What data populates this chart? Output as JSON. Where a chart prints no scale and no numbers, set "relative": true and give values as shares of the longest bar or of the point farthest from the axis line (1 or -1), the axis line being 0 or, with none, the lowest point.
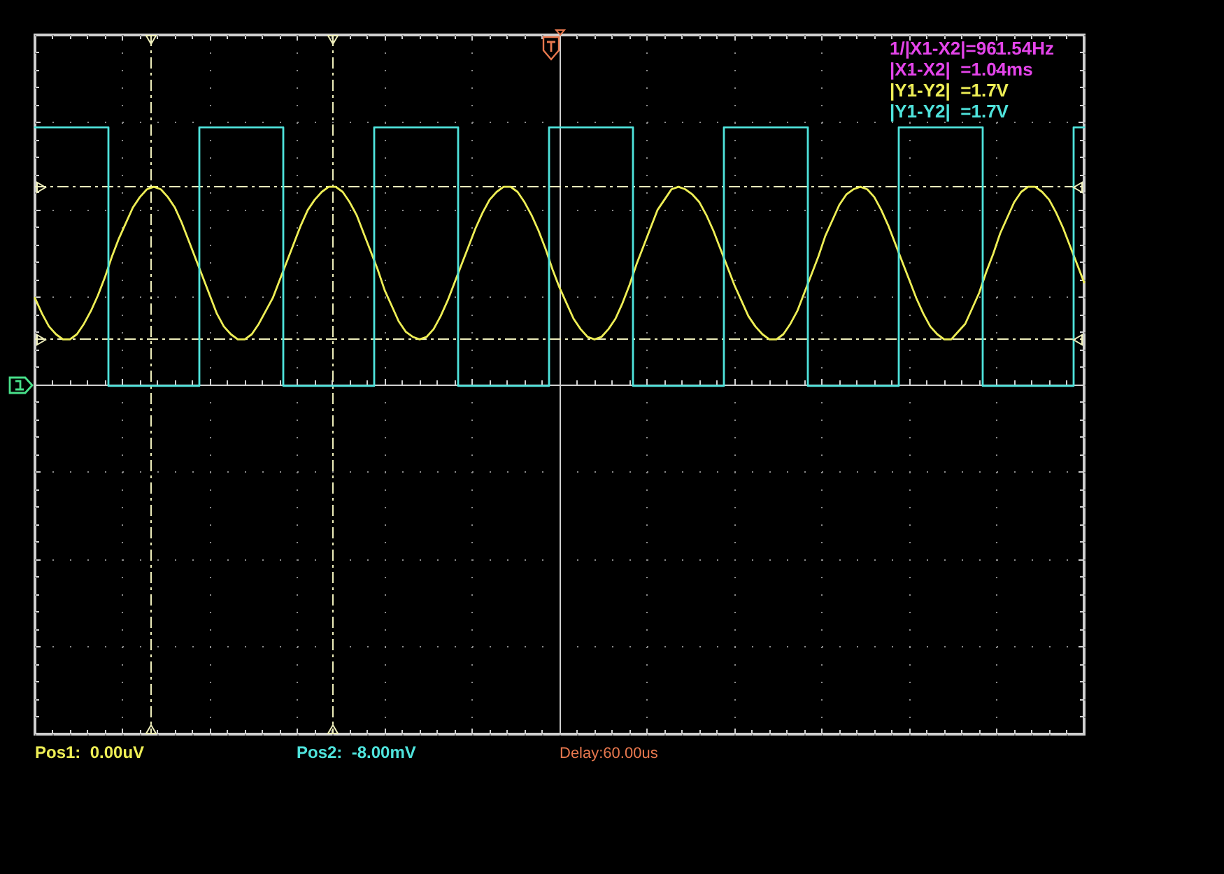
{
  "chart_data": {
    "type": "line",
    "relative": true,
    "grid": true,
    "line_style": "solid",
    "categories": [
      null,
      null,
      null,
      null,
      null,
      null,
      null,
      null,
      null,
      null,
      null,
      null,
      null,
      null,
      null,
      null,
      null,
      null,
      null,
      null,
      null,
      null,
      null,
      null,
      null,
      null,
      null,
      null,
      null,
      null,
      null,
      null,
      null,
      null,
      null,
      null,
      null,
      null,
      null,
      null,
      null,
      null,
      null,
      null,
      null,
      null,
      null,
      null,
      null,
      null,
      null,
      null,
      null,
      null,
      null,
      null,
      null,
      null,
      null,
      null,
      null,
      null,
      null,
      null,
      null,
      null,
      null,
      null,
      null,
      null,
      null,
      null,
      null,
      null,
      null,
      null,
      null,
      null,
      null,
      null,
      null,
      null,
      null,
      null,
      null,
      null,
      null,
      null,
      null,
      null,
      null,
      null,
      null,
      null,
      null,
      null,
      null,
      null,
      null,
      null,
      null,
      null,
      null,
      null,
      null,
      null,
      null,
      null,
      null,
      null,
      null,
      null,
      null,
      null,
      null,
      null,
      null,
      null,
      null,
      null,
      null,
      null,
      null,
      null,
      null,
      null,
      null,
      null,
      null,
      null,
      null,
      null,
      null,
      null,
      null,
      null,
      null,
      null,
      null,
      null,
      null,
      null,
      null,
      null,
      null,
      null,
      null,
      null,
      null,
      null,
      null
    ],
    "series": [
      {
        "color": "#eeee55",
        "values": [
          0.34,
          0.28,
          0.23,
          0.2,
          0.18,
          0.18,
          0.2,
          0.24,
          0.29,
          0.35,
          0.42,
          0.5,
          0.57,
          0.63,
          0.69,
          0.73,
          0.76,
          0.77,
          0.76,
          0.73,
          0.69,
          0.63,
          0.56,
          0.49,
          0.42,
          0.35,
          0.28,
          0.23,
          0.2,
          0.18,
          0.18,
          0.2,
          0.24,
          0.29,
          0.34,
          0.41,
          0.48,
          0.55,
          0.62,
          0.68,
          0.72,
          0.75,
          0.77,
          0.77,
          0.75,
          0.71,
          0.66,
          0.59,
          0.52,
          0.45,
          0.37,
          0.31,
          0.25,
          0.21,
          0.19,
          0.18,
          0.19,
          0.22,
          0.27,
          0.33,
          0.4,
          0.47,
          0.54,
          0.61,
          0.67,
          0.72,
          0.75,
          0.77,
          0.77,
          0.75,
          0.71,
          0.66,
          0.6,
          0.53,
          0.45,
          0.38,
          0.32,
          0.26,
          0.22,
          0.19,
          0.18,
          0.19,
          0.22,
          0.26,
          0.32,
          0.39,
          0.47,
          0.54,
          0.61,
          0.68,
          0.72,
          0.76,
          0.77,
          0.76,
          0.74,
          0.71,
          0.66,
          0.6,
          0.53,
          0.46,
          0.39,
          0.33,
          0.27,
          0.23,
          0.2,
          0.18,
          0.18,
          0.2,
          0.24,
          0.29,
          0.36,
          0.43,
          0.5,
          0.58,
          0.64,
          0.7,
          0.74,
          0.76,
          0.77,
          0.76,
          0.73,
          0.68,
          0.62,
          0.55,
          0.48,
          0.41,
          0.34,
          0.28,
          0.23,
          0.2,
          0.18,
          0.18,
          0.21,
          0.24,
          0.3,
          0.36,
          0.44,
          0.51,
          0.59,
          0.65,
          0.71,
          0.75,
          0.77,
          0.77,
          0.75,
          0.72,
          0.67,
          0.61,
          0.54,
          0.47,
          0.4
        ]
      },
      {
        "type": "step",
        "color": "#4fe3dc",
        "values": [
          1,
          1,
          1,
          1,
          1,
          1,
          1,
          1,
          1,
          1,
          1,
          0,
          0,
          0,
          0,
          0,
          0,
          0,
          0,
          0,
          0,
          0,
          0,
          0,
          1,
          1,
          1,
          1,
          1,
          1,
          1,
          1,
          1,
          1,
          1,
          1,
          0,
          0,
          0,
          0,
          0,
          0,
          0,
          0,
          0,
          0,
          0,
          0,
          0,
          1,
          1,
          1,
          1,
          1,
          1,
          1,
          1,
          1,
          1,
          1,
          1,
          0,
          0,
          0,
          0,
          0,
          0,
          0,
          0,
          0,
          0,
          0,
          0,
          0,
          1,
          1,
          1,
          1,
          1,
          1,
          1,
          1,
          1,
          1,
          1,
          1,
          0,
          0,
          0,
          0,
          0,
          0,
          0,
          0,
          0,
          0,
          0,
          0,
          0,
          1,
          1,
          1,
          1,
          1,
          1,
          1,
          1,
          1,
          1,
          1,
          1,
          0,
          0,
          0,
          0,
          0,
          0,
          0,
          0,
          0,
          0,
          0,
          0,
          0,
          1,
          1,
          1,
          1,
          1,
          1,
          1,
          1,
          1,
          1,
          1,
          1,
          0,
          0,
          0,
          0,
          0,
          0,
          0,
          0,
          0,
          0,
          0,
          0,
          0,
          1,
          1
        ]
      }
    ],
    "ref_lines": [
      {
        "axis": "y",
        "value": 0.77,
        "color": "#eeeebb",
        "line_style": "dashed"
      },
      {
        "axis": "y",
        "value": 0.18,
        "color": "#eeeebb",
        "line_style": "dashed"
      }
    ],
    "annotations": [
      "1/|X1-X2|=961.54Hz",
      "|X1-X2|  =1.04ms",
      "|Y1-Y2|  =1.7V",
      "|Y1-Y2|  =1.7V",
      "Pos1:  0.00uV",
      "Pos2:  -8.00mV",
      "Delay:60.00us"
    ]
  }
}
